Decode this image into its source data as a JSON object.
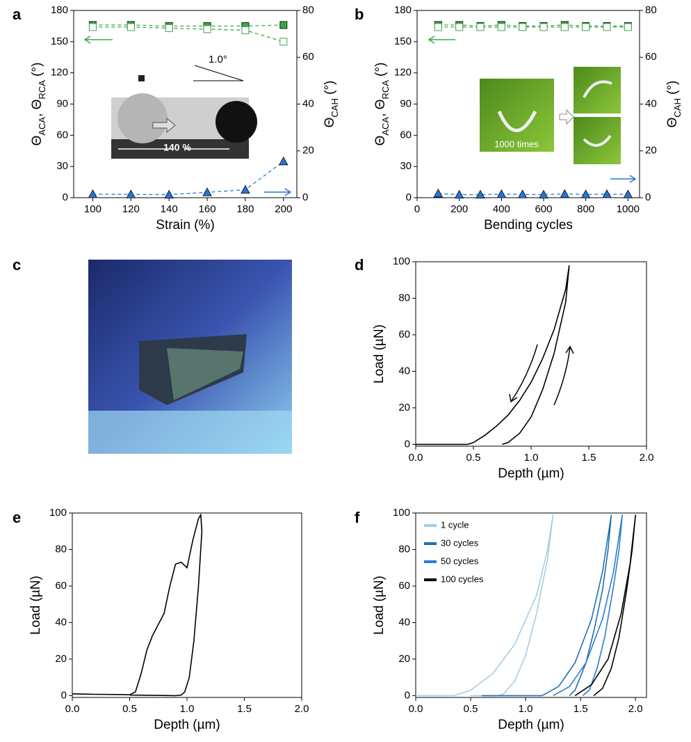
{
  "chart_data": [
    {
      "type": "line",
      "panel": "a",
      "xlabel": "Strain (%)",
      "ylabel": [
        "Θ",
        "ACA",
        ", Θ",
        "RCA",
        " (°)"
      ],
      "y2label": [
        "Θ",
        "CAH",
        " (°)"
      ],
      "x": [
        100,
        120,
        140,
        160,
        180,
        200
      ],
      "xlim": [
        90,
        207
      ],
      "xticks": [
        100,
        120,
        140,
        160,
        180,
        200
      ],
      "ylim": [
        0,
        180
      ],
      "yticks": [
        0,
        30,
        60,
        90,
        120,
        150,
        180
      ],
      "y2lim": [
        0,
        80
      ],
      "y2ticks": [
        0,
        20,
        40,
        60,
        80
      ],
      "series": [
        {
          "color": "#3aa845",
          "marker": "square",
          "filled": true,
          "dashed": true,
          "values": [
            166,
            166,
            165,
            165,
            165,
            166
          ]
        },
        {
          "color": "#3aa845",
          "marker": "square",
          "filled": false,
          "dashed": true,
          "values": [
            164,
            164,
            163,
            162,
            161,
            150
          ]
        },
        {
          "color": "#2277dd",
          "marker": "triangle",
          "filled": true,
          "dashed": true,
          "axis": "y2",
          "values": [
            1.5,
            1.4,
            1.3,
            2.3,
            3.4,
            15.5
          ]
        }
      ],
      "annotations": [
        "1.0°",
        "140 %"
      ]
    },
    {
      "type": "line",
      "panel": "b",
      "xlabel": "Bending cycles",
      "ylabel": [
        "Θ",
        "ACA",
        ", Θ",
        "RCA",
        " (°)"
      ],
      "y2label": [
        "Θ",
        "CAH",
        " (°)"
      ],
      "x": [
        100,
        200,
        300,
        400,
        500,
        600,
        700,
        800,
        900,
        1000
      ],
      "xlim": [
        0,
        1055
      ],
      "xticks": [
        0,
        200,
        400,
        600,
        800,
        1000
      ],
      "ylim": [
        0,
        180
      ],
      "yticks": [
        0,
        30,
        60,
        90,
        120,
        150,
        180
      ],
      "y2lim": [
        0,
        80
      ],
      "y2ticks": [
        0,
        20,
        40,
        60,
        80
      ],
      "series": [
        {
          "color": "#3aa845",
          "marker": "square",
          "filled": true,
          "dashed": true,
          "values": [
            166,
            166,
            165,
            166,
            165,
            165,
            166,
            165,
            165,
            165
          ]
        },
        {
          "color": "#3aa845",
          "marker": "square",
          "filled": false,
          "dashed": true,
          "values": [
            164,
            164,
            164,
            164,
            164,
            164,
            164,
            164,
            164,
            164
          ]
        },
        {
          "color": "#2277dd",
          "marker": "triangle",
          "filled": true,
          "dashed": true,
          "axis": "y2",
          "values": [
            1.8,
            1.3,
            1.3,
            1.5,
            1.4,
            1.3,
            1.6,
            1.4,
            1.5,
            1.4
          ]
        }
      ],
      "annotations": [
        "1000 times"
      ]
    },
    {
      "type": "image",
      "panel": "c"
    },
    {
      "type": "line",
      "panel": "d",
      "xlabel": "Depth (µm)",
      "ylabel": "Load (µN)",
      "xlim": [
        0,
        2
      ],
      "xticks": [
        {
          "value": 0,
          "label": "0.0"
        },
        0.5,
        {
          "value": 1,
          "label": "1.0"
        },
        1.5,
        {
          "value": 2,
          "label": "2.0"
        }
      ],
      "ylim": [
        -1,
        100
      ],
      "yticks": [
        0,
        20,
        40,
        60,
        80,
        100
      ],
      "series": [
        {
          "color": "#000000",
          "x": [
            0,
            0.45,
            0.5,
            0.6,
            0.7,
            0.8,
            0.9,
            1.0,
            1.1,
            1.2,
            1.3,
            1.33,
            1.3,
            1.2,
            1.1,
            1.0,
            0.9,
            0.8,
            0.75
          ],
          "values": [
            0,
            0,
            1,
            5,
            10,
            16,
            24,
            34,
            47,
            63,
            85,
            98,
            78,
            50,
            30,
            15,
            6,
            1,
            0
          ]
        }
      ]
    },
    {
      "type": "line",
      "panel": "e",
      "xlabel": "Depth (µm)",
      "ylabel": "Load (µN)",
      "xlim": [
        0,
        2
      ],
      "xticks": [
        {
          "value": 0,
          "label": "0.0"
        },
        0.5,
        {
          "value": 1,
          "label": "1.0"
        },
        1.5,
        {
          "value": 2,
          "label": "2.0"
        }
      ],
      "ylim": [
        -1,
        100
      ],
      "yticks": [
        0,
        20,
        40,
        60,
        80,
        100
      ],
      "series": [
        {
          "color": "#000000",
          "x": [
            0,
            0.2,
            0.4,
            0.5,
            0.55,
            0.6,
            0.65,
            0.7,
            0.75,
            0.8,
            0.85,
            0.9,
            0.95,
            1.0,
            1.05,
            1.1,
            1.12,
            1.13,
            1.1,
            1.06,
            1.02,
            0.98,
            0.95,
            0.9,
            0.7,
            0.5
          ],
          "values": [
            1,
            0.7,
            0.6,
            0.5,
            2,
            12,
            25,
            33,
            39,
            45,
            60,
            72,
            73,
            70,
            85,
            97,
            99,
            90,
            60,
            30,
            10,
            2,
            0.3,
            0,
            0.2,
            0.3
          ]
        }
      ]
    },
    {
      "type": "line",
      "panel": "f",
      "xlabel": "Depth (µm)",
      "ylabel": "Load (µN)",
      "legend": "upper left",
      "xlim": [
        0,
        2.1
      ],
      "xticks": [
        {
          "value": 0,
          "label": "0.0"
        },
        0.5,
        {
          "value": 1,
          "label": "1.0"
        },
        1.5,
        {
          "value": 2,
          "label": "2.0"
        }
      ],
      "ylim": [
        -1,
        100
      ],
      "yticks": [
        0,
        20,
        40,
        60,
        80,
        100
      ],
      "series": [
        {
          "name": "1 cycle",
          "color": "#a6cde6",
          "x": [
            0,
            0.35,
            0.5,
            0.7,
            0.9,
            1.1,
            1.2,
            1.25,
            1.2,
            1.1,
            1.0,
            0.9,
            0.8,
            0.75,
            0.5
          ],
          "values": [
            0,
            0,
            3,
            12,
            28,
            55,
            80,
            99,
            75,
            45,
            22,
            8,
            1,
            0,
            0
          ]
        },
        {
          "name": "30 cycles",
          "color": "#1f6fae",
          "x": [
            0.6,
            1.15,
            1.3,
            1.45,
            1.6,
            1.7,
            1.78,
            1.75,
            1.7,
            1.62,
            1.55,
            1.45,
            1.4
          ],
          "values": [
            0,
            0,
            5,
            18,
            42,
            68,
            99,
            80,
            58,
            35,
            18,
            3,
            0
          ]
        },
        {
          "name": "50 cycles",
          "color": "#2b7bd6",
          "x": [
            1.25,
            1.4,
            1.55,
            1.7,
            1.8,
            1.88,
            1.85,
            1.8,
            1.72,
            1.65,
            1.58,
            1.52
          ],
          "values": [
            0,
            5,
            18,
            42,
            68,
            99,
            80,
            60,
            32,
            15,
            3,
            0
          ]
        },
        {
          "name": "100 cycles",
          "color": "#000000",
          "x": [
            1.45,
            1.6,
            1.75,
            1.87,
            1.95,
            2.0,
            1.97,
            1.92,
            1.85,
            1.78,
            1.7,
            1.62
          ],
          "values": [
            0,
            6,
            20,
            45,
            72,
            99,
            80,
            58,
            32,
            15,
            4,
            0
          ]
        }
      ]
    }
  ]
}
